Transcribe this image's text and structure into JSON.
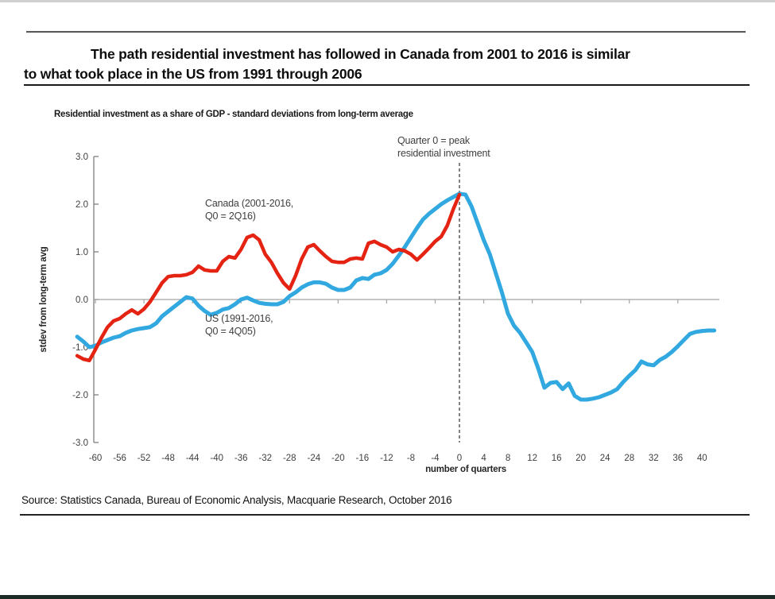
{
  "header": {
    "title_line1": "The path residential investment has followed in Canada from 2001 to 2016 is similar",
    "title_line2": "to what took place in the US from 1991 through 2006"
  },
  "subtitle": "Residential investment as a share of GDP - standard deviations from long-term average",
  "annotation": {
    "line1": "Quarter 0 = peak",
    "line2": "residential investment"
  },
  "footer": {
    "source": "Source: Statistics Canada, Bureau of Economic Analysis, Macquarie Research, October 2016"
  },
  "chart_data": {
    "type": "line",
    "title": "Residential investment as a share of GDP - standard deviations from long-term average",
    "xlabel": "number of quarters",
    "ylabel": "stdev from long-term avg",
    "xlim": [
      -63,
      43
    ],
    "ylim": [
      -3.0,
      3.0
    ],
    "grid": "zero-line-only",
    "legend_position": "inline-labels",
    "peak_marker_x": 0,
    "x_ticks": [
      -60,
      -56,
      -52,
      -48,
      -44,
      -40,
      -36,
      -32,
      -28,
      -24,
      -20,
      -16,
      -12,
      -8,
      -4,
      0,
      4,
      8,
      12,
      16,
      20,
      24,
      28,
      32,
      36,
      40
    ],
    "x_tick_labels": [
      "-60",
      "-56",
      "-52",
      "-48",
      "-44",
      "-40",
      "-36",
      "-32",
      "-28",
      "-24",
      "-20",
      "-16",
      "-12",
      "-8",
      "-4",
      "0",
      "4",
      "8",
      "12",
      "16",
      "20",
      "24",
      "28",
      "32",
      "36",
      "40"
    ],
    "x_tick_marks": [
      -60,
      -52,
      -44,
      -36,
      -28,
      -20,
      -12,
      -4,
      4,
      12,
      20,
      28,
      36
    ],
    "y_ticks": [
      3.0,
      2.0,
      1.0,
      0.0,
      -1.0,
      -2.0,
      -3.0
    ],
    "y_tick_labels": [
      "3.0",
      "2.0",
      "1.0",
      "0.0",
      "-1.0",
      "-2.0",
      "-3.0"
    ],
    "axis_color": "#7f7f7f",
    "zero_line_color": "#a3a3a3",
    "tick_label_color": "#404040",
    "dashed_line_color": "#404040",
    "series": [
      {
        "name": "US (1991-2016, Q0 = 4Q05)",
        "label_line1": "US (1991-2016,",
        "label_line2": "Q0 = 4Q05)",
        "color": "#31a8df",
        "stroke_width": 5,
        "points": [
          [
            -63,
            -0.78
          ],
          [
            -62,
            -0.88
          ],
          [
            -61,
            -1.0
          ],
          [
            -60,
            -0.97
          ],
          [
            -59,
            -0.9
          ],
          [
            -58,
            -0.85
          ],
          [
            -57,
            -0.8
          ],
          [
            -56,
            -0.77
          ],
          [
            -55,
            -0.7
          ],
          [
            -54,
            -0.65
          ],
          [
            -53,
            -0.62
          ],
          [
            -52,
            -0.6
          ],
          [
            -51,
            -0.58
          ],
          [
            -50,
            -0.5
          ],
          [
            -49,
            -0.35
          ],
          [
            -48,
            -0.25
          ],
          [
            -47,
            -0.15
          ],
          [
            -46,
            -0.05
          ],
          [
            -45,
            0.05
          ],
          [
            -44,
            0.02
          ],
          [
            -43,
            -0.13
          ],
          [
            -42,
            -0.24
          ],
          [
            -41,
            -0.32
          ],
          [
            -40,
            -0.28
          ],
          [
            -39,
            -0.21
          ],
          [
            -38,
            -0.18
          ],
          [
            -37,
            -0.1
          ],
          [
            -36,
            0.0
          ],
          [
            -35,
            0.04
          ],
          [
            -34,
            -0.02
          ],
          [
            -33,
            -0.07
          ],
          [
            -32,
            -0.09
          ],
          [
            -31,
            -0.1
          ],
          [
            -30,
            -0.1
          ],
          [
            -29,
            -0.05
          ],
          [
            -28,
            0.07
          ],
          [
            -27,
            0.15
          ],
          [
            -26,
            0.25
          ],
          [
            -25,
            0.32
          ],
          [
            -24,
            0.36
          ],
          [
            -23,
            0.36
          ],
          [
            -22,
            0.33
          ],
          [
            -21,
            0.25
          ],
          [
            -20,
            0.2
          ],
          [
            -19,
            0.2
          ],
          [
            -18,
            0.25
          ],
          [
            -17,
            0.4
          ],
          [
            -16,
            0.45
          ],
          [
            -15,
            0.43
          ],
          [
            -14,
            0.52
          ],
          [
            -13,
            0.55
          ],
          [
            -12,
            0.62
          ],
          [
            -11,
            0.75
          ],
          [
            -10,
            0.92
          ],
          [
            -9,
            1.1
          ],
          [
            -8,
            1.3
          ],
          [
            -7,
            1.5
          ],
          [
            -6,
            1.68
          ],
          [
            -5,
            1.8
          ],
          [
            -4,
            1.9
          ],
          [
            -3,
            2.0
          ],
          [
            -2,
            2.08
          ],
          [
            -1,
            2.15
          ],
          [
            0,
            2.22
          ],
          [
            1,
            2.2
          ],
          [
            2,
            1.95
          ],
          [
            3,
            1.6
          ],
          [
            4,
            1.25
          ],
          [
            5,
            0.95
          ],
          [
            6,
            0.55
          ],
          [
            7,
            0.15
          ],
          [
            8,
            -0.3
          ],
          [
            9,
            -0.55
          ],
          [
            10,
            -0.7
          ],
          [
            11,
            -0.9
          ],
          [
            12,
            -1.1
          ],
          [
            13,
            -1.45
          ],
          [
            14,
            -1.85
          ],
          [
            15,
            -1.75
          ],
          [
            16,
            -1.73
          ],
          [
            17,
            -1.88
          ],
          [
            18,
            -1.76
          ],
          [
            19,
            -2.02
          ],
          [
            20,
            -2.1
          ],
          [
            21,
            -2.1
          ],
          [
            22,
            -2.08
          ],
          [
            23,
            -2.05
          ],
          [
            24,
            -2.0
          ],
          [
            25,
            -1.95
          ],
          [
            26,
            -1.88
          ],
          [
            27,
            -1.73
          ],
          [
            28,
            -1.6
          ],
          [
            29,
            -1.48
          ],
          [
            30,
            -1.3
          ],
          [
            31,
            -1.36
          ],
          [
            32,
            -1.38
          ],
          [
            33,
            -1.27
          ],
          [
            34,
            -1.2
          ],
          [
            35,
            -1.1
          ],
          [
            36,
            -0.98
          ],
          [
            37,
            -0.85
          ],
          [
            38,
            -0.72
          ],
          [
            39,
            -0.68
          ],
          [
            40,
            -0.66
          ],
          [
            41,
            -0.65
          ],
          [
            42,
            -0.65
          ]
        ]
      },
      {
        "name": "Canada (2001-2016, Q0 = 2Q16)",
        "label_line1": "Canada (2001-2016,",
        "label_line2": "Q0 = 2Q16)",
        "color": "#e42313",
        "stroke_width": 4.5,
        "points": [
          [
            -63,
            -1.18
          ],
          [
            -62,
            -1.25
          ],
          [
            -61,
            -1.28
          ],
          [
            -60,
            -1.05
          ],
          [
            -59,
            -0.8
          ],
          [
            -58,
            -0.58
          ],
          [
            -57,
            -0.45
          ],
          [
            -56,
            -0.4
          ],
          [
            -55,
            -0.3
          ],
          [
            -54,
            -0.22
          ],
          [
            -53,
            -0.3
          ],
          [
            -52,
            -0.2
          ],
          [
            -51,
            -0.05
          ],
          [
            -50,
            0.15
          ],
          [
            -49,
            0.35
          ],
          [
            -48,
            0.48
          ],
          [
            -47,
            0.5
          ],
          [
            -46,
            0.5
          ],
          [
            -45,
            0.52
          ],
          [
            -44,
            0.57
          ],
          [
            -43,
            0.7
          ],
          [
            -42,
            0.62
          ],
          [
            -41,
            0.6
          ],
          [
            -40,
            0.6
          ],
          [
            -39,
            0.8
          ],
          [
            -38,
            0.9
          ],
          [
            -37,
            0.87
          ],
          [
            -36,
            1.05
          ],
          [
            -35,
            1.3
          ],
          [
            -34,
            1.35
          ],
          [
            -33,
            1.25
          ],
          [
            -32,
            0.95
          ],
          [
            -31,
            0.78
          ],
          [
            -30,
            0.55
          ],
          [
            -29,
            0.35
          ],
          [
            -28,
            0.22
          ],
          [
            -27,
            0.5
          ],
          [
            -26,
            0.85
          ],
          [
            -25,
            1.1
          ],
          [
            -24,
            1.15
          ],
          [
            -23,
            1.02
          ],
          [
            -22,
            0.9
          ],
          [
            -21,
            0.8
          ],
          [
            -20,
            0.78
          ],
          [
            -19,
            0.78
          ],
          [
            -18,
            0.85
          ],
          [
            -17,
            0.87
          ],
          [
            -16,
            0.85
          ],
          [
            -15,
            1.18
          ],
          [
            -14,
            1.22
          ],
          [
            -13,
            1.15
          ],
          [
            -12,
            1.1
          ],
          [
            -11,
            1.0
          ],
          [
            -10,
            1.05
          ],
          [
            -9,
            1.02
          ],
          [
            -8,
            0.95
          ],
          [
            -7,
            0.83
          ],
          [
            -6,
            0.95
          ],
          [
            -5,
            1.08
          ],
          [
            -4,
            1.22
          ],
          [
            -3,
            1.32
          ],
          [
            -2,
            1.55
          ],
          [
            -1,
            1.9
          ],
          [
            0,
            2.2
          ]
        ]
      }
    ]
  }
}
